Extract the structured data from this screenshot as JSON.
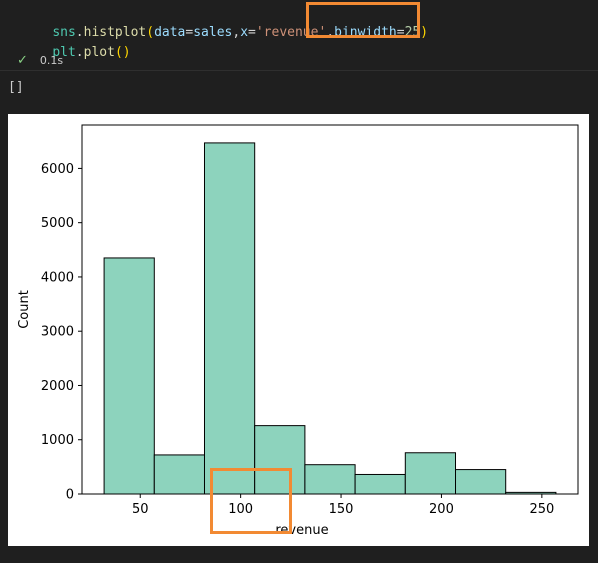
{
  "code": {
    "line1": {
      "mod": "sns",
      "dot": ".",
      "fn": "histplot",
      "open": "(",
      "p1": "data",
      "eq1": "=",
      "v1": "sales",
      "comma1": ",",
      "p2": "x",
      "eq2": "=",
      "v2": "'revenue'",
      "comma2": ",",
      "p3": "binwidth",
      "eq3": "=",
      "v3": "25",
      "close": ")"
    },
    "line2": {
      "mod": "plt",
      "dot": ".",
      "fn": "plot",
      "parens": "()"
    }
  },
  "status": {
    "icon": "check-icon",
    "duration": "0.1s"
  },
  "output": {
    "text": "[]"
  },
  "colors": {
    "bar_fill": "#8dd3bd",
    "highlight": "#f28a33"
  },
  "chart_data": {
    "type": "bar",
    "xlabel": "revenue",
    "ylabel": "Count",
    "bin_width": 25,
    "bins": [
      {
        "start": 32,
        "end": 57,
        "count": 4350
      },
      {
        "start": 57,
        "end": 82,
        "count": 720
      },
      {
        "start": 82,
        "end": 107,
        "count": 6470
      },
      {
        "start": 107,
        "end": 132,
        "count": 1260
      },
      {
        "start": 132,
        "end": 157,
        "count": 540
      },
      {
        "start": 157,
        "end": 182,
        "count": 360
      },
      {
        "start": 182,
        "end": 207,
        "count": 760
      },
      {
        "start": 207,
        "end": 232,
        "count": 450
      },
      {
        "start": 232,
        "end": 257,
        "count": 30
      }
    ],
    "xlim": [
      21,
      268
    ],
    "ylim": [
      0,
      6800
    ],
    "xticks": [
      "50",
      "100",
      "150",
      "200",
      "250"
    ],
    "yticks": [
      "0",
      "1000",
      "2000",
      "3000",
      "4000",
      "5000",
      "6000"
    ],
    "grid": false
  }
}
